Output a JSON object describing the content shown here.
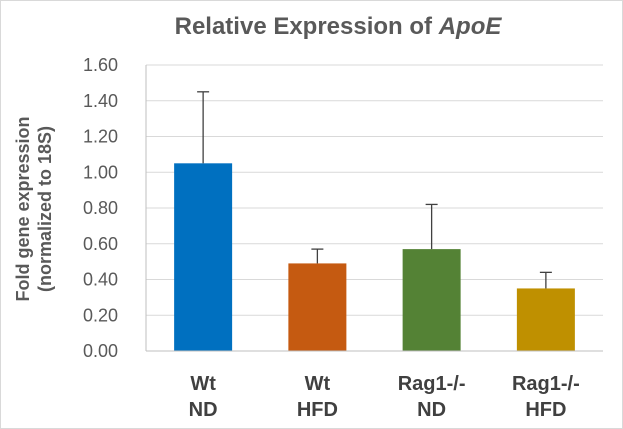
{
  "chart_data": {
    "type": "bar",
    "title": "Relative Expression of",
    "title_italic": "ApoE",
    "ylabel_line1": "Fold gene expression",
    "ylabel_line2": "(normalized to 18S)",
    "ylim": [
      0,
      1.6
    ],
    "yticks": [
      "0.00",
      "0.20",
      "0.40",
      "0.60",
      "0.80",
      "1.00",
      "1.20",
      "1.40",
      "1.60"
    ],
    "grid": true,
    "categories": [
      [
        "Wt",
        "ND"
      ],
      [
        "Wt",
        "HFD"
      ],
      [
        "Rag1-/-",
        "ND"
      ],
      [
        "Rag1-/-",
        "HFD"
      ]
    ],
    "values": [
      1.05,
      0.49,
      0.57,
      0.35
    ],
    "errors": [
      0.4,
      0.08,
      0.25,
      0.09
    ],
    "colors": [
      "#0070c0",
      "#c55a11",
      "#548235",
      "#bf9000"
    ]
  }
}
